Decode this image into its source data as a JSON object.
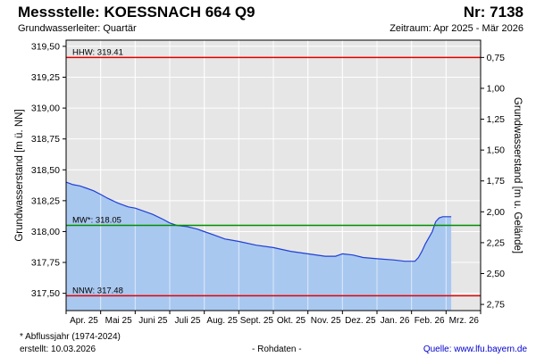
{
  "header": {
    "title": "Messstelle: KOESSNACH 664 Q9",
    "number": "Nr: 7138",
    "aquifer": "Grundwasserleiter: Quartär",
    "period": "Zeitraum: Apr 2025 - Mär 2026"
  },
  "footer": {
    "note": "* Abflussjahr (1974-2024)",
    "created": "erstellt:  10.03.2026",
    "raw": "- Rohdaten -",
    "source": "Quelle: www.lfu.bayern.de"
  },
  "colors": {
    "fill": "#a9c8f0",
    "line": "#1f3fd6",
    "hhw": "#e00000",
    "mw": "#009000",
    "nnw": "#e00000",
    "plot_bg": "#e6e6e6",
    "source_link": "#0000cc"
  },
  "chart_data": {
    "type": "area",
    "ylabel": "Grundwasserstand [m ü. NN]",
    "ylabel_right": "Grundwasserstand [m u. Gelände]",
    "ylim": [
      317.36,
      319.55
    ],
    "yticks": [
      317.5,
      317.75,
      318.0,
      318.25,
      318.5,
      318.75,
      319.0,
      319.25,
      319.5
    ],
    "ytick_labels": [
      "317,50",
      "317,75",
      "318,00",
      "318,25",
      "318,50",
      "318,75",
      "319,00",
      "319,25",
      "319,50"
    ],
    "right_ticks": [
      0.75,
      1.0,
      1.25,
      1.5,
      1.75,
      2.0,
      2.25,
      2.5,
      2.75
    ],
    "right_tick_labels": [
      "0,75",
      "1,00",
      "1,25",
      "1,50",
      "1,75",
      "2,00",
      "2,25",
      "2,50",
      "2,75"
    ],
    "right_offset": 320.16,
    "xlim": [
      0,
      12
    ],
    "xticks": [
      0,
      1,
      2,
      3,
      4,
      5,
      6,
      7,
      8,
      9,
      10,
      11,
      12
    ],
    "xtick_labels": [
      "Apr. 25",
      "Mai 25",
      "Juni 25",
      "Juli 25",
      "Aug. 25",
      "Sept. 25",
      "Okt. 25",
      "Nov. 25",
      "Dez. 25",
      "Jan. 26",
      "Feb. 26",
      "Mrz. 26",
      ""
    ],
    "grid": true,
    "reference_lines": [
      {
        "label": "HHW: 319.41",
        "value": 319.41,
        "key": "hhw"
      },
      {
        "label": "MW*: 318.05",
        "value": 318.05,
        "key": "mw"
      },
      {
        "label": "NNW: 317.48",
        "value": 317.48,
        "key": "nnw"
      }
    ],
    "series": [
      {
        "x": [
          0,
          0.2,
          0.4,
          0.6,
          0.8,
          1.0,
          1.2,
          1.5,
          1.8,
          2.0,
          2.2,
          2.5,
          2.8,
          3.0,
          3.2,
          3.5,
          3.8,
          4.0,
          4.3,
          4.6,
          5.0,
          5.5,
          6.0,
          6.5,
          7.0,
          7.5,
          7.8,
          8.0,
          8.3,
          8.6,
          9.0,
          9.5,
          9.8,
          10.0,
          10.1,
          10.2,
          10.3,
          10.4,
          10.5,
          10.6,
          10.7,
          10.8,
          10.9,
          11.0,
          11.15
        ],
        "y": [
          318.4,
          318.38,
          318.37,
          318.35,
          318.33,
          318.3,
          318.27,
          318.23,
          318.2,
          318.19,
          318.17,
          318.14,
          318.1,
          318.07,
          318.05,
          318.04,
          318.02,
          318.0,
          317.97,
          317.94,
          317.92,
          317.89,
          317.87,
          317.84,
          317.82,
          317.8,
          317.8,
          317.82,
          317.81,
          317.79,
          317.78,
          317.77,
          317.76,
          317.76,
          317.76,
          317.79,
          317.84,
          317.9,
          317.95,
          318.0,
          318.08,
          318.11,
          318.12,
          318.12,
          318.12
        ]
      }
    ]
  }
}
